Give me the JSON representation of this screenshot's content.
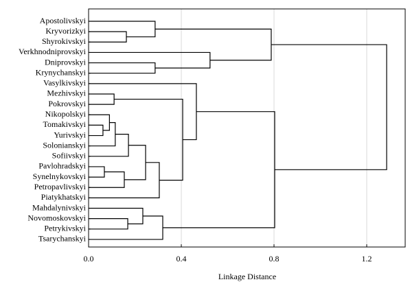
{
  "chart_data": {
    "type": "dendrogram",
    "x_label": "Linkage Distance",
    "xlim": [
      0,
      1.366
    ],
    "xticks": [
      {
        "value": 0,
        "label": "0.0"
      },
      0.4,
      0.8,
      1.2
    ],
    "grid": true,
    "color": "#000000",
    "tree": {
      "height": 1.286,
      "children": [
        {
          "height": 0.788,
          "children": [
            {
              "height": 0.287,
              "children": [
                {
                  "label": "Apostolivskyi"
                },
                {
                  "height": 0.163,
                  "children": [
                    {
                      "label": "Kryvorizkyi"
                    },
                    {
                      "label": "Shyrokivskyi"
                    }
                  ]
                }
              ]
            },
            {
              "height": 0.524,
              "children": [
                {
                  "label": "Verkhnodniprovskyi"
                },
                {
                  "height": 0.287,
                  "children": [
                    {
                      "label": "Dniprovskyi"
                    },
                    {
                      "label": "Krynychanskyi"
                    }
                  ]
                }
              ]
            }
          ]
        },
        {
          "height": 0.803,
          "children": [
            {
              "height": 0.465,
              "children": [
                {
                  "label": "Vasylkivskyi"
                },
                {
                  "height": 0.406,
                  "children": [
                    {
                      "height": 0.11,
                      "children": [
                        {
                          "label": "Mezhivskyi"
                        },
                        {
                          "label": "Pokrovskyi"
                        }
                      ]
                    },
                    {
                      "height": 0.305,
                      "children": [
                        {
                          "height": 0.246,
                          "children": [
                            {
                              "height": 0.172,
                              "children": [
                                {
                                  "height": 0.115,
                                  "children": [
                                    {
                                      "height": 0.09,
                                      "children": [
                                        {
                                          "label": "Nikopolskyi"
                                        },
                                        {
                                          "height": 0.062,
                                          "children": [
                                            {
                                              "label": "Tomakivskyi"
                                            },
                                            {
                                              "label": "Yurivskyi"
                                            }
                                          ]
                                        }
                                      ]
                                    },
                                    {
                                      "label": "Solonianskyi"
                                    }
                                  ]
                                },
                                {
                                  "label": "Sofiivskyi"
                                }
                              ]
                            },
                            {
                              "height": 0.154,
                              "children": [
                                {
                                  "height": 0.068,
                                  "children": [
                                    {
                                      "label": "Pavlohradskyi"
                                    },
                                    {
                                      "label": "Synelnykovskyi"
                                    }
                                  ]
                                },
                                {
                                  "label": "Petropavlivskyi"
                                }
                              ]
                            }
                          ]
                        },
                        {
                          "label": "Piatykhatskyi"
                        }
                      ]
                    }
                  ]
                }
              ]
            },
            {
              "height": 0.32,
              "children": [
                {
                  "height": 0.234,
                  "children": [
                    {
                      "label": "Mahdalynivskyi"
                    },
                    {
                      "height": 0.169,
                      "children": [
                        {
                          "label": "Novomoskovskyi"
                        },
                        {
                          "label": "Petrykivskyi"
                        }
                      ]
                    }
                  ]
                },
                {
                  "label": "Tsarychanskyi"
                }
              ]
            }
          ]
        }
      ]
    }
  }
}
